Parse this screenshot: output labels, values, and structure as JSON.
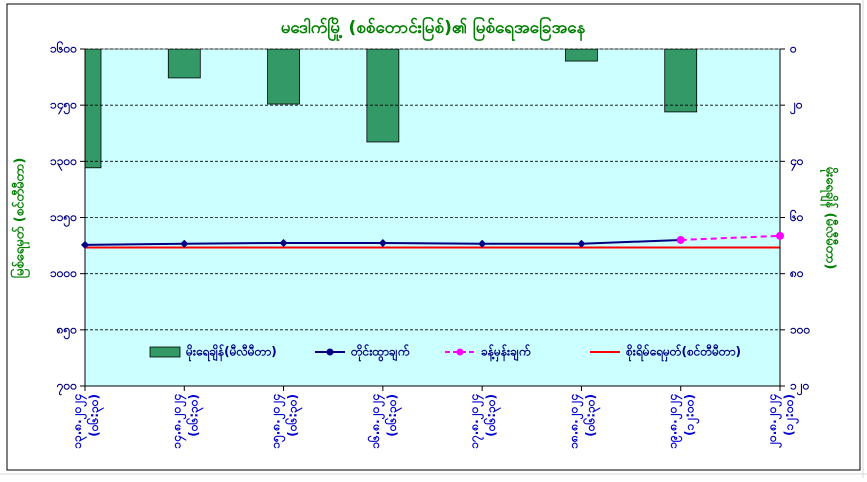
{
  "chart_data": {
    "type": "combo",
    "title": "မဒေါက်မြို့ (စစ်တောင်းမြစ်)၏ မြစ်ရေအခြေအနေ",
    "y_label": "မြစ်ရေမှတ် (စင်တီမီတာ)",
    "y2_label": "မိုးရေချိန် (မီလီမီတာ)",
    "categories": [
      [
        "၁၃.၈.၂၀၂၄",
        "(၀၆:၃၀)"
      ],
      [
        "၁၄.၈.၂၀၂၄",
        "(၀၆:၃၀)"
      ],
      [
        "၁၅.၈.၂၀၂၄",
        "(၀၆:၃၀)"
      ],
      [
        "၁၆.၈.၂၀၂၄",
        "(၀၆:၃၀)"
      ],
      [
        "၁၇.၈.၂၀၂၄",
        "(၀၆:၃၀)"
      ],
      [
        "၁၈.၈.၂၀၂၄",
        "(၀၆:၃၀)"
      ],
      [
        "၁၉.၈.၂၀၂၄",
        "(၁၂:၀၀)"
      ],
      [
        "၂၀.၈.၂၀၂၄",
        "(၁၂:၀၀)"
      ]
    ],
    "ylim": [
      700,
      1600
    ],
    "yticks": [
      {
        "value": 700,
        "label": "၇၀၀"
      },
      {
        "value": 850,
        "label": "၈၅၀"
      },
      {
        "value": 1000,
        "label": "၁၀၀၀"
      },
      {
        "value": 1150,
        "label": "၁၁၅၀"
      },
      {
        "value": 1300,
        "label": "၁၃၀၀"
      },
      {
        "value": 1450,
        "label": "၁၄၅၀"
      },
      {
        "value": 1600,
        "label": "၁၆၀၀"
      }
    ],
    "y2lim": [
      0,
      120
    ],
    "y2_reversed": true,
    "y2ticks": [
      {
        "value": 0,
        "label": "၀"
      },
      {
        "value": 20,
        "label": "၂၀"
      },
      {
        "value": 40,
        "label": "၄၀"
      },
      {
        "value": 60,
        "label": "၆၀"
      },
      {
        "value": 80,
        "label": "၈၀"
      },
      {
        "value": 100,
        "label": "၁၀၀"
      },
      {
        "value": 120,
        "label": "၁၂၀"
      }
    ],
    "grid": true,
    "series": [
      {
        "name": "မိုးရေချိန်(မီလီမီတာ)",
        "kind": "bar",
        "axis": "y2",
        "color": "#339966",
        "values": [
          42.3,
          10.3,
          19.6,
          33.1,
          0,
          4.3,
          22.4,
          0
        ]
      },
      {
        "name": "တိုင်းထွာချက်",
        "kind": "line",
        "color": "#000080",
        "marker": "diamond",
        "values": [
          1077,
          1080,
          1082,
          1082,
          1080,
          1080,
          1090,
          null
        ]
      },
      {
        "name": "ခန့်မှန်းချက်",
        "kind": "line",
        "dashed": true,
        "color": "#ff00ff",
        "marker": "circle",
        "values": [
          null,
          null,
          null,
          null,
          null,
          null,
          1090,
          1101
        ]
      },
      {
        "name": "စိုးရိမ်ရေမှတ်(စင်တီမီတာ)",
        "kind": "line",
        "color": "#ff0000",
        "values": [
          1070,
          1070,
          1070,
          1070,
          1070,
          1070,
          1070,
          1070
        ]
      }
    ]
  }
}
